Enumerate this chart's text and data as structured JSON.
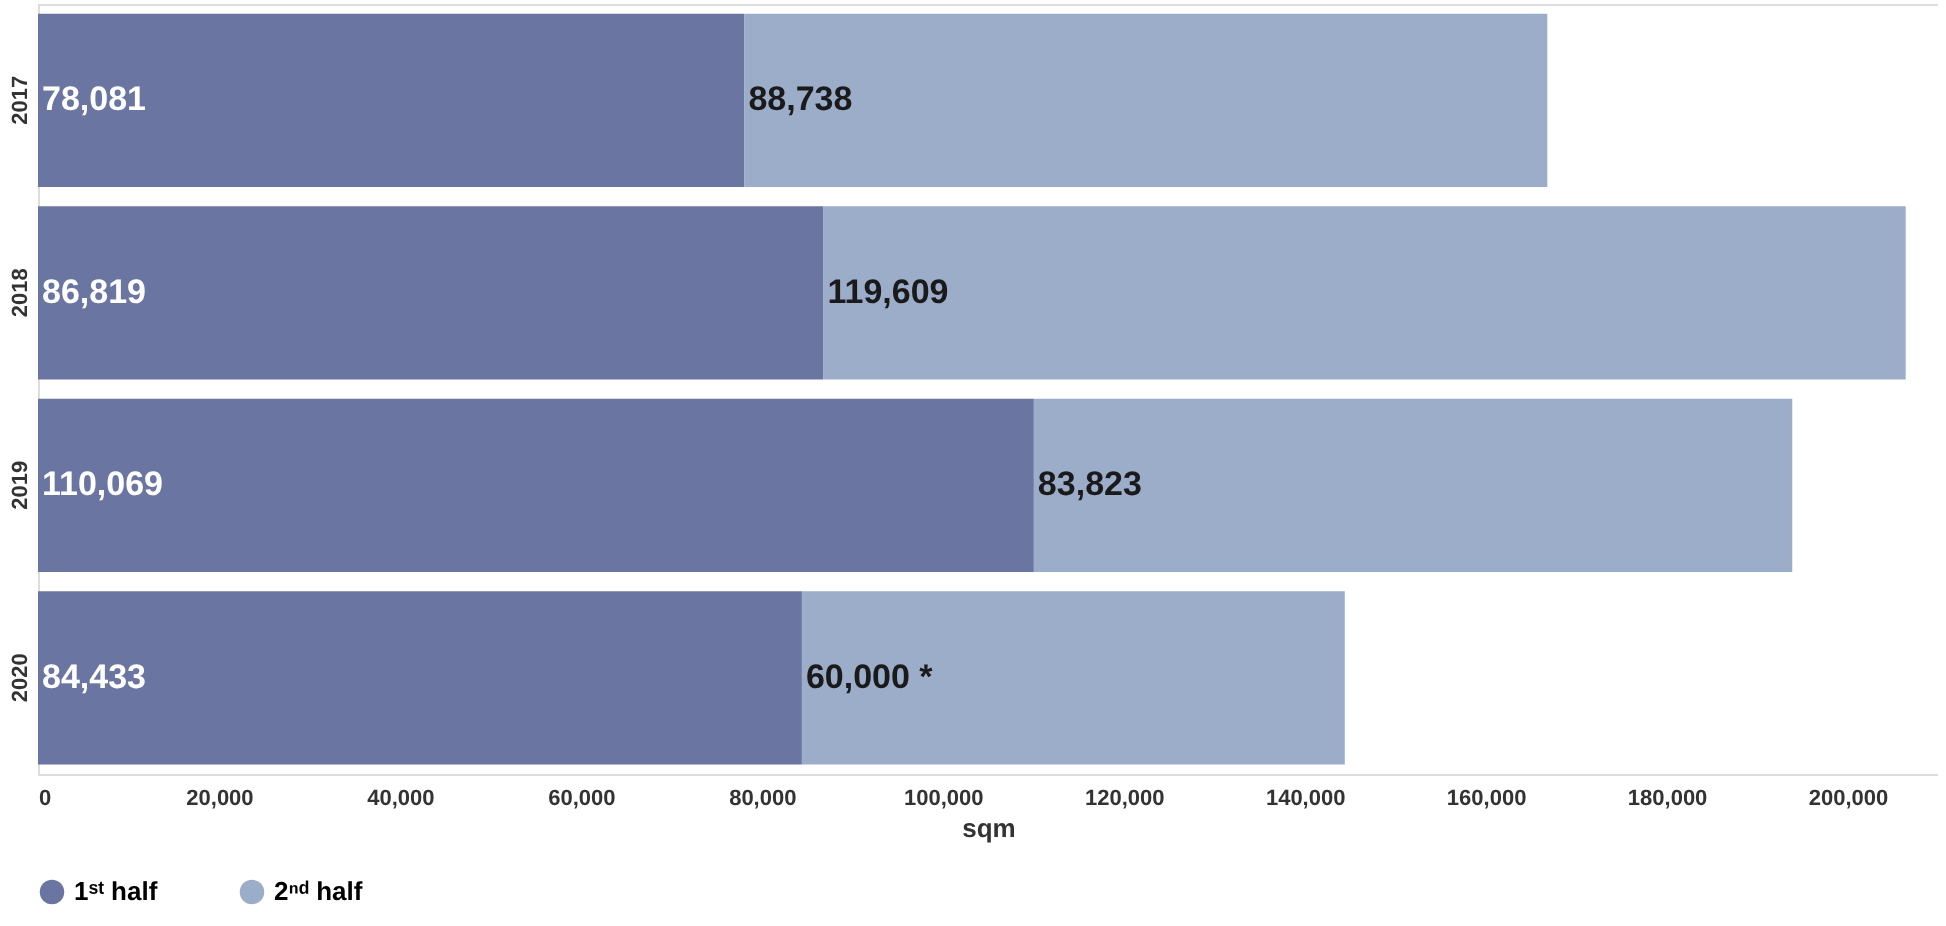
{
  "chart_data": {
    "type": "bar",
    "orientation": "horizontal",
    "stacked": true,
    "xlabel": "sqm",
    "categories": [
      "2017",
      "2018",
      "2019",
      "2020"
    ],
    "series": [
      {
        "name": "1ˢᵗ half",
        "color": "#6b75a1",
        "values": [
          78081,
          86819,
          110069,
          84433
        ],
        "value_labels": [
          "78,081",
          "86,819",
          "110,069",
          "84,433"
        ]
      },
      {
        "name": "2ⁿᵈ half",
        "color": "#9badc8",
        "values": [
          88738,
          119609,
          83823,
          60000
        ],
        "value_labels": [
          "88,738",
          "119,609",
          "83,823",
          "60,000 *"
        ]
      }
    ],
    "xlim": [
      0,
      210000
    ],
    "xticks": [
      0,
      {
        "value": 20000,
        "label": "20,000"
      },
      {
        "value": 40000,
        "label": "40,000"
      },
      {
        "value": 60000,
        "label": "60,000"
      },
      {
        "value": 80000,
        "label": "80,000"
      },
      {
        "value": 100000,
        "label": "100,000"
      },
      {
        "value": 120000,
        "label": "120,000"
      },
      {
        "value": 140000,
        "label": "140,000"
      },
      {
        "value": 160000,
        "label": "160,000"
      },
      {
        "value": 180000,
        "label": "180,000"
      },
      {
        "value": 200000,
        "label": "200,000"
      }
    ],
    "grid": false,
    "legend": "bottom"
  }
}
